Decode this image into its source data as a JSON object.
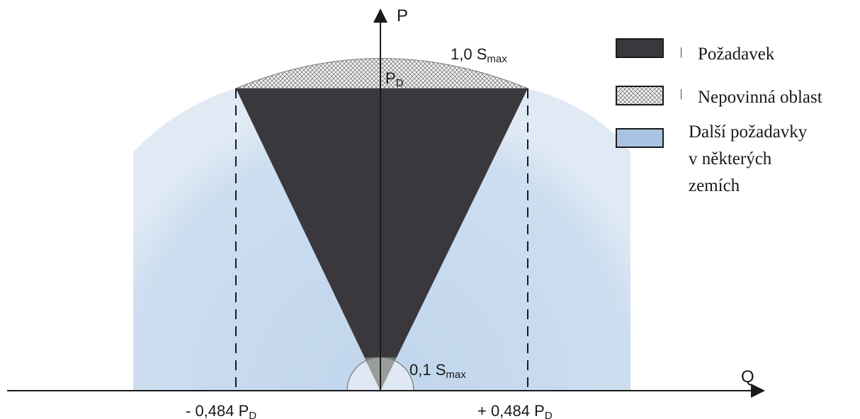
{
  "axes": {
    "p_label": "P",
    "q_label": "Q"
  },
  "labels": {
    "smax_top": {
      "main": "1,0 S",
      "sub": "max"
    },
    "pd_top": {
      "main": "P",
      "sub": "D"
    },
    "smax_small": {
      "main": "0,1 S",
      "sub": "max"
    },
    "neg_pd": {
      "main": "- 0,484 P",
      "sub": "D"
    },
    "pos_pd": {
      "main": "+ 0,484 P",
      "sub": "D"
    }
  },
  "legend": [
    {
      "key": "requirement",
      "text_lines": [
        "Požadavek"
      ],
      "marker": "|",
      "swatch_color": "#3a383c"
    },
    {
      "key": "optional",
      "text_lines": [
        "Nepovinná oblast"
      ],
      "marker": "|",
      "swatch": "crosshatch"
    },
    {
      "key": "additional",
      "text_lines": [
        "Další požadavky",
        "v některých",
        "zemích"
      ],
      "marker": "",
      "swatch_color": "#a9c4e2"
    }
  ],
  "colors": {
    "requirement_fill": "#3a383c",
    "additional_fill": "#c4d8ec",
    "small_circle_fill": "#e8eef5",
    "axis": "#1a1a1a"
  }
}
